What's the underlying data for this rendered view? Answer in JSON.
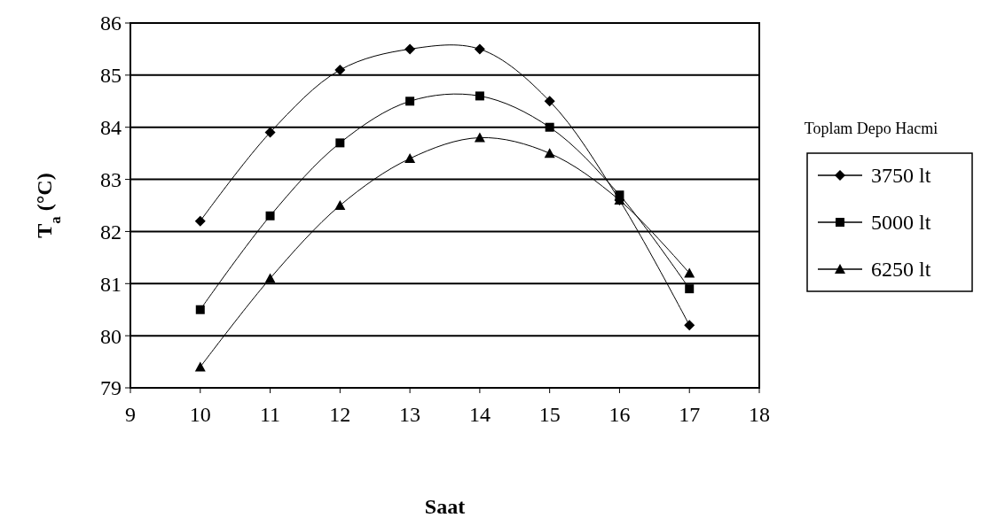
{
  "chart_data": {
    "type": "line",
    "xlabel": "Saat",
    "ylabel": "T$_{a}$ (°C)",
    "legend_title": "Toplam Depo Hacmi",
    "x": [
      10,
      11,
      12,
      13,
      14,
      15,
      16,
      17
    ],
    "series": [
      {
        "name": "3750 lt",
        "color": "#000000",
        "marker": "diamond",
        "values": [
          82.2,
          83.9,
          85.1,
          85.5,
          85.5,
          84.5,
          82.6,
          80.2
        ]
      },
      {
        "name": "5000 lt",
        "color": "#000000",
        "marker": "square",
        "values": [
          80.5,
          82.3,
          83.7,
          84.5,
          84.6,
          84.0,
          82.7,
          80.9
        ]
      },
      {
        "name": "6250 lt",
        "color": "#000000",
        "marker": "triangle",
        "values": [
          79.4,
          81.1,
          82.5,
          83.4,
          83.8,
          83.5,
          82.6,
          81.2
        ]
      }
    ],
    "xlim": [
      9,
      18
    ],
    "xticks": [
      9,
      10,
      11,
      12,
      13,
      14,
      15,
      16,
      17,
      18
    ],
    "ylim": [
      79,
      86
    ],
    "yticks": [
      79,
      80,
      81,
      82,
      83,
      84,
      85,
      86
    ],
    "grid": "y",
    "legend": "right",
    "line_style": "solid"
  }
}
